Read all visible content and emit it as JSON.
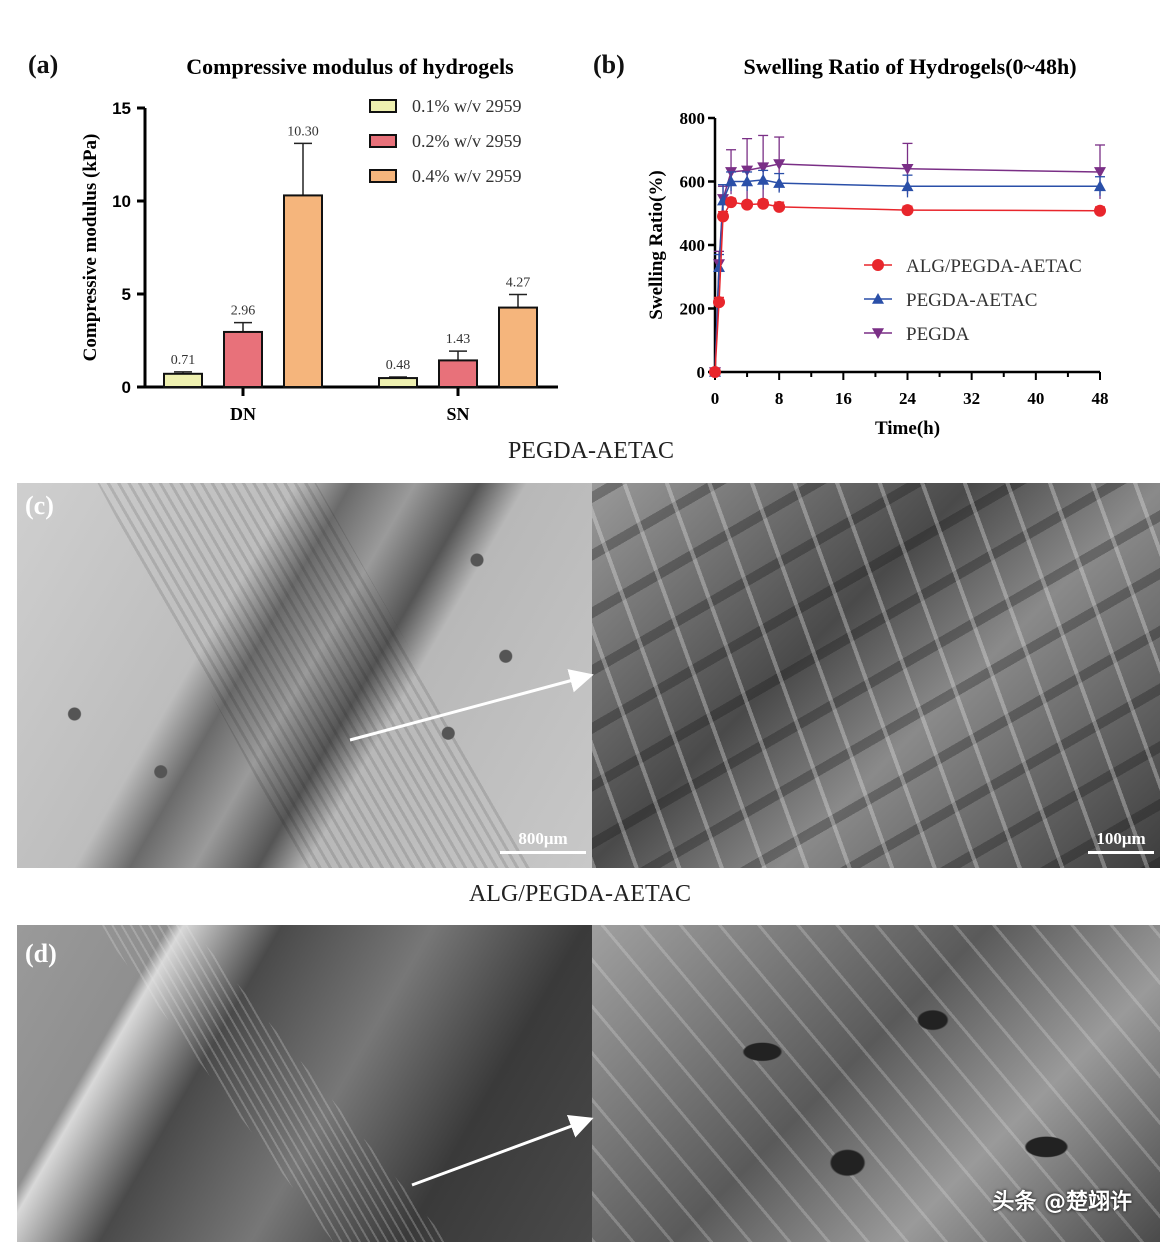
{
  "panels": {
    "a_label": "(a)",
    "b_label": "(b)",
    "c_label": "(c)",
    "d_label": "(d)",
    "c_title": "PEGDA-AETAC",
    "d_title": "ALG/PEGDA-AETAC",
    "c_scale_left": "800μm",
    "c_scale_right": "100μm"
  },
  "watermark": "头条 @楚翊许",
  "chart_data": [
    {
      "type": "bar",
      "title": "Compressive modulus of hydrogels",
      "xlabel": "",
      "ylabel": "Compressive modulus (kPa)",
      "ylim": [
        0,
        15
      ],
      "yticks": [
        0,
        5,
        10,
        15
      ],
      "categories": [
        "DN",
        "SN"
      ],
      "legend_position": "top-right",
      "series": [
        {
          "name": "0.1% w/v 2959",
          "color": "#eef0b0",
          "values": [
            0.71,
            0.48
          ],
          "labels": [
            "0.71",
            "0.48"
          ],
          "errors": [
            0.1,
            0.06
          ]
        },
        {
          "name": "0.2% w/v 2959",
          "color": "#e8717a",
          "values": [
            2.96,
            1.43
          ],
          "labels": [
            "2.96",
            "1.43"
          ],
          "errors": [
            0.5,
            0.5
          ]
        },
        {
          "name": "0.4% w/v 2959",
          "color": "#f5b57c",
          "values": [
            10.3,
            4.27
          ],
          "labels": [
            "10.30",
            "4.27"
          ],
          "errors": [
            2.8,
            0.7
          ]
        }
      ]
    },
    {
      "type": "line",
      "title": "Swelling Ratio of Hydrogels(0~48h)",
      "xlabel": "Time(h)",
      "ylabel": "Swelling Ratio(%)",
      "xlim": [
        0,
        48
      ],
      "ylim": [
        0,
        800
      ],
      "xticks": [
        0,
        8,
        16,
        24,
        32,
        40,
        48
      ],
      "yticks": [
        0,
        200,
        400,
        600,
        800
      ],
      "legend_position": "center-right",
      "x": [
        0,
        0.5,
        1,
        2,
        4,
        6,
        8,
        24,
        48
      ],
      "series": [
        {
          "name": "ALG/PEGDA-AETAC",
          "color": "#e8262c",
          "marker": "circle",
          "values": [
            0,
            220,
            490,
            535,
            527,
            530,
            520,
            510,
            508
          ],
          "errors": [
            0,
            15,
            15,
            12,
            10,
            12,
            15,
            12,
            12
          ]
        },
        {
          "name": "PEGDA-AETAC",
          "color": "#2a4fa8",
          "marker": "triangle-up",
          "values": [
            0,
            330,
            540,
            600,
            600,
            605,
            595,
            585,
            585
          ],
          "errors": [
            0,
            40,
            50,
            30,
            30,
            30,
            30,
            35,
            30
          ]
        },
        {
          "name": "PEGDA",
          "color": "#7a2f86",
          "marker": "triangle-down",
          "values": [
            0,
            340,
            545,
            630,
            635,
            645,
            655,
            640,
            630
          ],
          "errors": [
            0,
            40,
            40,
            70,
            100,
            100,
            85,
            80,
            85
          ]
        }
      ]
    }
  ]
}
